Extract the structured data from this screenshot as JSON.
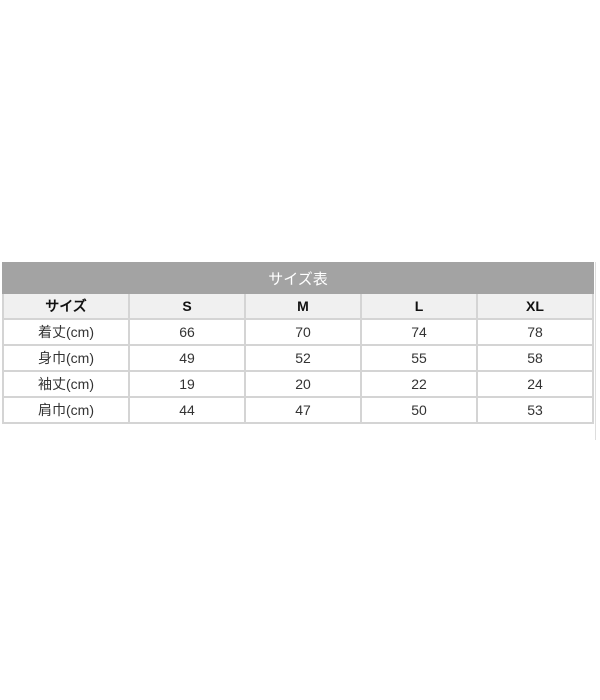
{
  "table": {
    "title": "サイズ表",
    "headers": [
      "サイズ",
      "S",
      "M",
      "L",
      "XL"
    ],
    "rows": [
      {
        "label": "着丈(cm)",
        "values": [
          "66",
          "70",
          "74",
          "78"
        ]
      },
      {
        "label": "身巾(cm)",
        "values": [
          "49",
          "52",
          "55",
          "58"
        ]
      },
      {
        "label": "袖丈(cm)",
        "values": [
          "19",
          "20",
          "22",
          "24"
        ]
      },
      {
        "label": "肩巾(cm)",
        "values": [
          "44",
          "47",
          "50",
          "53"
        ]
      }
    ]
  },
  "colors": {
    "title_bg": "#a3a3a3",
    "header_bg": "#f0f0f0",
    "border": "#d4d4d4"
  }
}
